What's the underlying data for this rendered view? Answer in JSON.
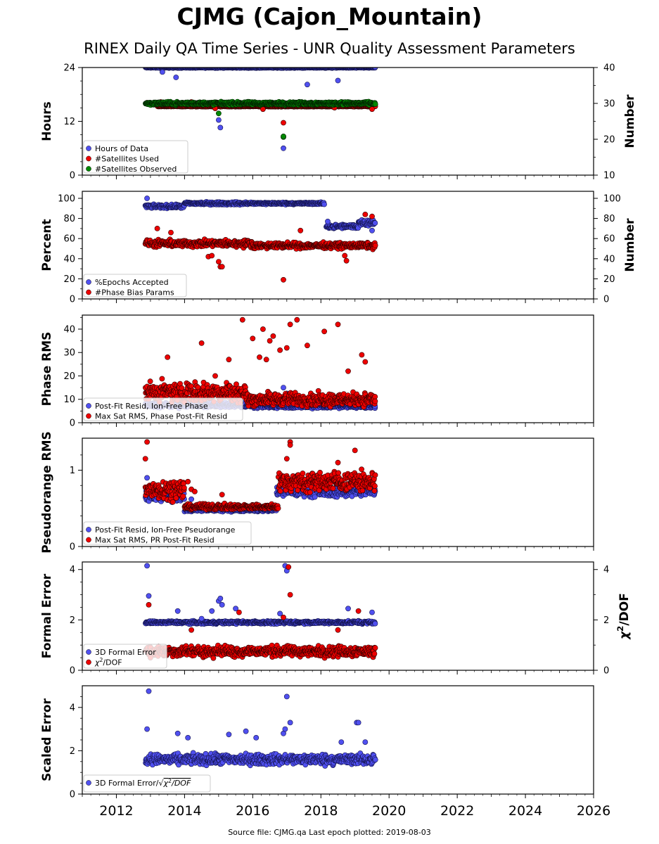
{
  "title": "CJMG (Cajon_Mountain)",
  "subtitle": "RINEX Daily QA Time Series - UNR Quality Assessment Parameters",
  "footer": "Source file: CJMG.qa Last epoch plotted: 2019-08-03",
  "colors": {
    "blue": "#5050f0",
    "red": "#ee0000",
    "green": "#008800",
    "dark_red": "#660000",
    "dark_blue": "#141450"
  },
  "chart_data": [
    {
      "type": "scatter",
      "id": "hours",
      "ylabel": "Hours",
      "ylim": [
        0,
        24
      ],
      "yticks": [
        0,
        12,
        24
      ],
      "yticks_minor": [
        3,
        6,
        9,
        15,
        18,
        21
      ],
      "y2label": "Number",
      "y2lim": [
        10,
        40
      ],
      "y2ticks": [
        10,
        20,
        30,
        40
      ],
      "xlim": [
        2011.0,
        2026.0
      ],
      "legend_placement": "lower-left",
      "series": [
        {
          "name": "Hours of Data",
          "color": "blue",
          "axis": "left",
          "band": {
            "x": [
              2012.85,
              2019.6
            ],
            "y": 24.0,
            "jitter": 0.15
          },
          "points": [
            [
              2013.35,
              23.0
            ],
            [
              2013.75,
              21.8
            ],
            [
              2015.0,
              12.3
            ],
            [
              2015.05,
              10.6
            ],
            [
              2017.6,
              20.2
            ],
            [
              2018.5,
              21.1
            ],
            [
              2016.9,
              6.0
            ]
          ]
        },
        {
          "name": "#Satellites Used",
          "color": "red",
          "axis": "right",
          "band": {
            "x": [
              2013.2,
              2019.6
            ],
            "y": 29.2,
            "jitter": 0.2
          },
          "points": [
            [
              2012.9,
              30.2
            ],
            [
              2013.3,
              30.4
            ],
            [
              2013.5,
              29.8
            ],
            [
              2014.2,
              30.4
            ],
            [
              2014.9,
              28.6
            ],
            [
              2016.3,
              28.4
            ],
            [
              2016.9,
              24.6
            ],
            [
              2018.4,
              28.8
            ],
            [
              2019.5,
              28.4
            ]
          ]
        },
        {
          "name": "#Satellites Observed",
          "color": "green",
          "axis": "right",
          "band": {
            "x": [
              2012.85,
              2019.6
            ],
            "y": 30.0,
            "jitter": 0.6
          },
          "points": [
            [
              2015.0,
              27.2
            ],
            [
              2016.9,
              20.6
            ],
            [
              2016.9,
              20.8
            ]
          ]
        }
      ]
    },
    {
      "type": "scatter",
      "id": "percent",
      "ylabel": "Percent",
      "ylim": [
        0,
        107
      ],
      "yticks": [
        0,
        20,
        40,
        60,
        80,
        100
      ],
      "yticks_minor": [
        10,
        30,
        50,
        70,
        90
      ],
      "y2label": "Number",
      "y2lim": [
        0,
        107
      ],
      "y2ticks": [
        0,
        20,
        40,
        60,
        80,
        100
      ],
      "xlim": [
        2011.0,
        2026.0
      ],
      "legend_placement": "lower-left",
      "series": [
        {
          "name": "%Epochs Accepted",
          "color": "blue",
          "axis": "left",
          "segments": [
            {
              "x": [
                2012.85,
                2014.0
              ],
              "y": 92,
              "jitter": 2.5
            },
            {
              "x": [
                2014.0,
                2016.0
              ],
              "y": 95,
              "jitter": 2.0
            },
            {
              "x": [
                2016.0,
                2018.1
              ],
              "y": 95,
              "jitter": 1.5
            },
            {
              "x": [
                2018.15,
                2019.1
              ],
              "y": 72,
              "jitter": 3.0
            },
            {
              "x": [
                2019.1,
                2019.6
              ],
              "y": 76,
              "jitter": 4.0
            }
          ],
          "points": [
            [
              2012.9,
              100
            ],
            [
              2018.2,
              77
            ],
            [
              2019.5,
              68
            ]
          ]
        },
        {
          "name": "#Phase Bias Params",
          "color": "red",
          "axis": "right",
          "segments": [
            {
              "x": [
                2012.85,
                2016.0
              ],
              "y": 55,
              "jitter": 5.0
            },
            {
              "x": [
                2016.0,
                2019.6
              ],
              "y": 53,
              "jitter": 4.0
            }
          ],
          "points": [
            [
              2013.2,
              70
            ],
            [
              2013.6,
              66
            ],
            [
              2014.7,
              42
            ],
            [
              2014.8,
              43
            ],
            [
              2015.0,
              37
            ],
            [
              2015.05,
              32
            ],
            [
              2015.1,
              32
            ],
            [
              2016.9,
              19
            ],
            [
              2017.4,
              68
            ],
            [
              2018.7,
              43
            ],
            [
              2018.75,
              38
            ],
            [
              2019.3,
              84
            ],
            [
              2019.5,
              82
            ]
          ]
        }
      ]
    },
    {
      "type": "scatter",
      "id": "phase",
      "ylabel": "Phase RMS",
      "ylim": [
        0,
        46
      ],
      "yticks": [
        0,
        10,
        20,
        30,
        40
      ],
      "yticks_minor": [
        5,
        15,
        25,
        35,
        45
      ],
      "xlim": [
        2011.0,
        2026.0
      ],
      "legend_placement": "lower-left",
      "series": [
        {
          "name": "Post-Fit Resid, Ion-Free Phase",
          "color": "blue",
          "axis": "left",
          "segments": [
            {
              "x": [
                2012.85,
                2016.0
              ],
              "y": 7.5,
              "jitter": 1.5
            },
            {
              "x": [
                2016.0,
                2019.6
              ],
              "y": 7.0,
              "jitter": 1.2
            }
          ],
          "points": [
            [
              2016.9,
              15.0
            ],
            [
              2017.0,
              12.5
            ]
          ]
        },
        {
          "name": "Max Sat RMS, Phase Post-Fit Resid",
          "color": "red",
          "axis": "left",
          "segments": [
            {
              "x": [
                2012.85,
                2015.8
              ],
              "y": 13,
              "jitter": 6.0
            },
            {
              "x": [
                2015.8,
                2019.6
              ],
              "y": 10,
              "jitter": 4.0
            }
          ],
          "points": [
            [
              2013.5,
              28
            ],
            [
              2014.5,
              34
            ],
            [
              2015.7,
              44
            ],
            [
              2016.0,
              36
            ],
            [
              2016.3,
              40
            ],
            [
              2016.5,
              35
            ],
            [
              2016.6,
              37
            ],
            [
              2016.8,
              31
            ],
            [
              2017.0,
              32
            ],
            [
              2017.1,
              42
            ],
            [
              2017.3,
              44
            ],
            [
              2017.6,
              33
            ],
            [
              2018.1,
              39
            ],
            [
              2018.5,
              42
            ],
            [
              2018.8,
              22
            ],
            [
              2019.2,
              29
            ],
            [
              2019.3,
              26
            ],
            [
              2016.2,
              28
            ],
            [
              2016.4,
              27
            ],
            [
              2015.3,
              27
            ],
            [
              2014.9,
              20
            ]
          ]
        }
      ]
    },
    {
      "type": "scatter",
      "id": "pseudorange",
      "ylabel": "Pseudorange RMS",
      "ylim": [
        0,
        1.42
      ],
      "yticks": [
        0,
        1
      ],
      "yticks_minor": [
        0.2,
        0.4,
        0.6,
        0.8,
        1.2
      ],
      "xlim": [
        2011.0,
        2026.0
      ],
      "legend_placement": "lower-left",
      "series": [
        {
          "name": "Post-Fit Resid, Ion-Free Pseudorange",
          "color": "blue",
          "axis": "left",
          "segments": [
            {
              "x": [
                2012.85,
                2014.0
              ],
              "y": 0.65,
              "jitter": 0.12
            },
            {
              "x": [
                2014.0,
                2016.7
              ],
              "y": 0.48,
              "jitter": 0.03
            },
            {
              "x": [
                2016.7,
                2019.6
              ],
              "y": 0.72,
              "jitter": 0.1
            }
          ],
          "points": [
            [
              2012.9,
              0.9
            ],
            [
              2014.2,
              0.62
            ]
          ]
        },
        {
          "name": "Max Sat RMS, PR Post-Fit Resid",
          "color": "red",
          "axis": "left",
          "segments": [
            {
              "x": [
                2012.85,
                2014.0
              ],
              "y": 0.75,
              "jitter": 0.18
            },
            {
              "x": [
                2014.0,
                2016.75
              ],
              "y": 0.52,
              "jitter": 0.05
            },
            {
              "x": [
                2016.75,
                2019.6
              ],
              "y": 0.85,
              "jitter": 0.18
            }
          ],
          "points": [
            [
              2012.9,
              1.37
            ],
            [
              2012.85,
              1.15
            ],
            [
              2014.1,
              0.85
            ],
            [
              2014.2,
              0.75
            ],
            [
              2014.3,
              0.72
            ],
            [
              2015.1,
              0.68
            ],
            [
              2017.1,
              1.37
            ],
            [
              2017.1,
              1.33
            ],
            [
              2019.0,
              1.26
            ],
            [
              2017.0,
              1.15
            ],
            [
              2018.5,
              1.1
            ]
          ]
        }
      ]
    },
    {
      "type": "scatter",
      "id": "formal",
      "ylabel": "Formal Error",
      "ylim": [
        0,
        4.3
      ],
      "yticks": [
        0,
        2,
        4
      ],
      "yticks_minor": [
        0.5,
        1,
        1.5,
        2.5,
        3,
        3.5
      ],
      "y2label": "χ2/DOF",
      "y2lim": [
        0,
        4.3
      ],
      "y2ticks": [
        0,
        2,
        4
      ],
      "xlim": [
        2011.0,
        2026.0
      ],
      "legend_placement": "lower-left",
      "series": [
        {
          "name": "3D Formal Error",
          "color": "blue",
          "axis": "left",
          "band": {
            "x": [
              2012.85,
              2019.6
            ],
            "y": 1.9,
            "jitter": 0.08
          },
          "points": [
            [
              2012.9,
              4.15
            ],
            [
              2012.95,
              2.95
            ],
            [
              2013.8,
              2.35
            ],
            [
              2014.5,
              2.05
            ],
            [
              2015.0,
              2.75
            ],
            [
              2015.05,
              2.85
            ],
            [
              2015.1,
              2.6
            ],
            [
              2014.8,
              2.35
            ],
            [
              2016.95,
              4.15
            ],
            [
              2017.0,
              3.95
            ],
            [
              2016.8,
              2.25
            ],
            [
              2018.8,
              2.45
            ],
            [
              2019.5,
              2.3
            ],
            [
              2015.5,
              2.45
            ]
          ]
        },
        {
          "name": "χ2/DOF",
          "color": "red",
          "axis": "right",
          "segments": [
            {
              "x": [
                2012.85,
                2019.6
              ],
              "y": 0.75,
              "jitter": 0.3
            }
          ],
          "points": [
            [
              2012.95,
              2.6
            ],
            [
              2013.0,
              0.5
            ],
            [
              2017.05,
              4.1
            ],
            [
              2017.1,
              3.0
            ],
            [
              2015.6,
              2.3
            ],
            [
              2016.9,
              2.1
            ],
            [
              2019.1,
              2.35
            ],
            [
              2018.5,
              1.6
            ],
            [
              2014.2,
              1.6
            ]
          ]
        }
      ]
    },
    {
      "type": "scatter",
      "id": "scaled",
      "ylabel": "Scaled Error",
      "ylim": [
        0,
        5.0
      ],
      "yticks": [
        0,
        2,
        4
      ],
      "yticks_minor": [
        0.5,
        1,
        1.5,
        2.5,
        3,
        3.5,
        4.5
      ],
      "xlim": [
        2011.0,
        2026.0
      ],
      "xticks": [
        2012,
        2014,
        2016,
        2018,
        2020,
        2022,
        2024,
        2026
      ],
      "legend_placement": "lower-left",
      "series": [
        {
          "name": "3D Formal Error/√χ2/DOF",
          "color": "blue",
          "axis": "left",
          "band": {
            "x": [
              2012.85,
              2019.6
            ],
            "y": 1.6,
            "jitter": 0.35
          },
          "points": [
            [
              2012.95,
              4.75
            ],
            [
              2012.9,
              3.0
            ],
            [
              2013.8,
              2.8
            ],
            [
              2014.1,
              2.6
            ],
            [
              2015.3,
              2.75
            ],
            [
              2015.8,
              2.9
            ],
            [
              2016.1,
              2.6
            ],
            [
              2016.9,
              2.8
            ],
            [
              2016.95,
              3.0
            ],
            [
              2017.0,
              4.5
            ],
            [
              2017.1,
              3.3
            ],
            [
              2019.05,
              3.3
            ],
            [
              2019.1,
              3.3
            ],
            [
              2018.6,
              2.4
            ],
            [
              2019.3,
              2.4
            ]
          ]
        }
      ]
    }
  ]
}
